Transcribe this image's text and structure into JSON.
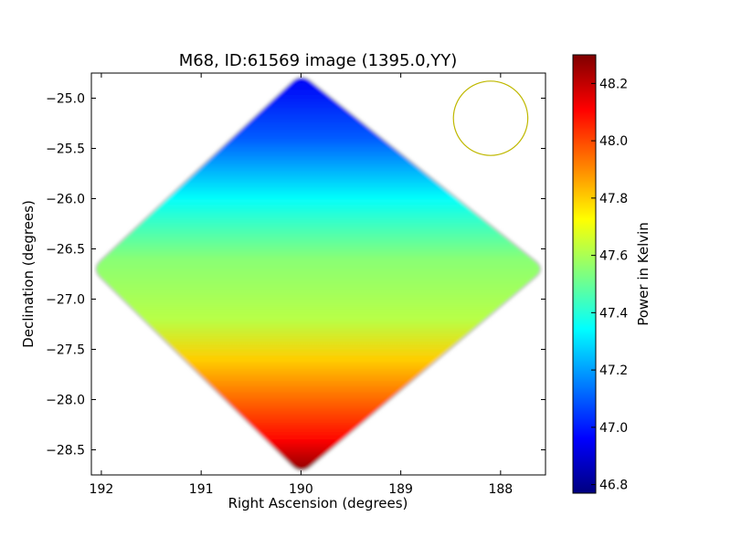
{
  "chart_data": {
    "type": "heatmap",
    "title": "M68, ID:61569 image (1395.0,YY)",
    "xlabel": "Right Ascension (degrees)",
    "ylabel": "Declination (degrees)",
    "xlim": [
      192.1,
      187.55
    ],
    "ylim": [
      -28.75,
      -24.75
    ],
    "x_ticks": [
      192,
      191,
      190,
      189,
      188
    ],
    "x_tick_labels": [
      "192",
      "191",
      "190",
      "189",
      "188"
    ],
    "y_ticks": [
      -25.0,
      -25.5,
      -26.0,
      -26.5,
      -27.0,
      -27.5,
      -28.0,
      -28.5
    ],
    "y_tick_labels": [
      "−25.0",
      "−25.5",
      "−26.0",
      "−26.5",
      "−27.0",
      "−27.5",
      "−28.0",
      "−28.5"
    ],
    "colormap": "jet",
    "grid": false,
    "colorbar": {
      "label": "Power in Kelvin",
      "range": [
        46.77,
        48.3
      ],
      "ticks": [
        46.8,
        47.0,
        47.2,
        47.4,
        47.6,
        47.8,
        48.0,
        48.2
      ],
      "tick_labels": [
        "46.8",
        "47.0",
        "47.2",
        "47.4",
        "47.6",
        "47.8",
        "48.0",
        "48.2"
      ]
    },
    "footprint_vertices_radec": [
      [
        190.0,
        -24.75
      ],
      [
        192.1,
        -26.7
      ],
      [
        190.0,
        -28.75
      ],
      [
        187.55,
        -26.7
      ]
    ],
    "value_gradient": [
      {
        "dec": -24.8,
        "value": 46.95
      },
      {
        "dec": -25.4,
        "value": 47.1
      },
      {
        "dec": -26.0,
        "value": 47.35
      },
      {
        "dec": -26.6,
        "value": 47.55
      },
      {
        "dec": -27.2,
        "value": 47.62
      },
      {
        "dec": -27.6,
        "value": 47.8
      },
      {
        "dec": -28.0,
        "value": 47.95
      },
      {
        "dec": -28.4,
        "value": 48.1
      },
      {
        "dec": -28.75,
        "value": 48.3
      }
    ],
    "beam_circle": {
      "ra": 188.1,
      "dec": -25.2,
      "radius_deg": 0.37,
      "color": "#bfb800"
    }
  },
  "colors": {
    "jet_stops": [
      "#00007f",
      "#0000ff",
      "#007fff",
      "#00ffff",
      "#7fff7f",
      "#ffff00",
      "#ff7f00",
      "#ff0000",
      "#7f0000"
    ]
  }
}
